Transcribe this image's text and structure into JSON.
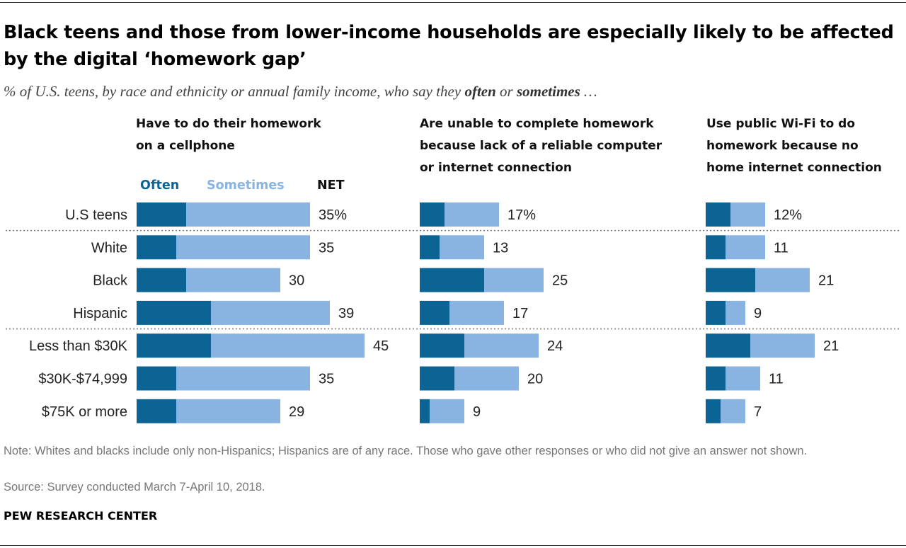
{
  "title": "Black teens and those from lower-income households are especially likely to be affected by the digital ‘homework gap’",
  "subtitle": {
    "prefix": "% of U.S. teens, by race and ethnicity or annual family income, who say they ",
    "often": "often",
    "middle": " or ",
    "sometimes": "sometimes",
    "suffix": " …"
  },
  "legend": {
    "often": "Often",
    "sometimes": "Sometimes",
    "net": "NET"
  },
  "colors": {
    "often": "#0b6494",
    "sometimes": "#89b3e0",
    "divider": "#777777"
  },
  "note": "Note: Whites and blacks include only non-Hispanics; Hispanics are of any race. Those who gave other responses or who did not give an answer not shown.",
  "source": "Source: Survey conducted March 7-April 10, 2018.",
  "brand": "PEW RESEARCH CENTER",
  "chart_data": {
    "type": "bar",
    "orientation": "horizontal",
    "stacked": true,
    "categories": [
      "U.S teens",
      "White",
      "Black",
      "Hispanic",
      "Less than $30K",
      "$30K-$74,999",
      "$75K or more"
    ],
    "dividers_after": [
      0,
      3
    ],
    "first_row_suffix": "%",
    "panels": [
      {
        "title_lines": [
          "Have to do their homework",
          "on a cellphone"
        ],
        "series": [
          {
            "name": "Often",
            "values": [
              10,
              8,
              10,
              15,
              15,
              8,
              8
            ]
          },
          {
            "name": "Sometimes",
            "values": [
              25,
              27,
              19,
              24,
              31,
              27,
              21
            ]
          }
        ],
        "net": [
          35,
          35,
          30,
          39,
          45,
          35,
          29
        ]
      },
      {
        "title_lines": [
          "Are unable to complete homework",
          "because lack of a reliable computer",
          "or internet connection"
        ],
        "series": [
          {
            "name": "Often",
            "values": [
              5,
              4,
              13,
              6,
              9,
              7,
              2
            ]
          },
          {
            "name": "Sometimes",
            "values": [
              11,
              9,
              12,
              11,
              15,
              13,
              7
            ]
          }
        ],
        "net": [
          17,
          13,
          25,
          17,
          24,
          20,
          9
        ]
      },
      {
        "title_lines": [
          "Use public Wi-Fi to do",
          "homework because no",
          "home internet connection"
        ],
        "series": [
          {
            "name": "Often",
            "values": [
              5,
              4,
              10,
              4,
              9,
              4,
              3
            ]
          },
          {
            "name": "Sometimes",
            "values": [
              7,
              8,
              11,
              4,
              13,
              7,
              5
            ]
          }
        ],
        "net": [
          12,
          11,
          21,
          9,
          21,
          11,
          7
        ]
      }
    ]
  }
}
